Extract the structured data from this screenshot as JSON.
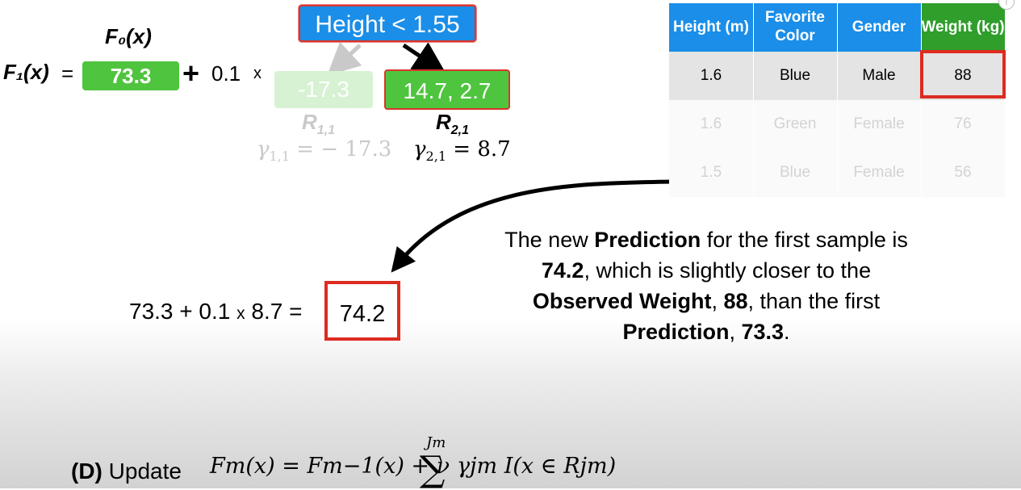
{
  "formula": {
    "f0_label": "F₀(x)",
    "f1_label": "F₁(x)",
    "equals": "=",
    "f0_value": "73.3",
    "plus": "+",
    "learning_rate": "0.1",
    "times": "x"
  },
  "tree": {
    "root": "Height < 1.55",
    "left_leaf": "-17.3",
    "right_leaf": "14.7, 2.7",
    "left_region": "R",
    "left_region_sub": "1,1",
    "right_region": "R",
    "right_region_sub": "2,1",
    "left_gamma": "γ",
    "left_gamma_sub": "1,1",
    "left_gamma_value": " = − 17.3",
    "right_gamma": "γ",
    "right_gamma_sub": "2,1",
    "right_gamma_value": " = 8.7"
  },
  "table": {
    "headers": [
      "Height (m)",
      "Favorite Color",
      "Gender",
      "Weight (kg)"
    ],
    "rows": [
      [
        "1.6",
        "Blue",
        "Male",
        "88"
      ],
      [
        "1.6",
        "Green",
        "Female",
        "76"
      ],
      [
        "1.5",
        "Blue",
        "Female",
        "56"
      ]
    ]
  },
  "calc": {
    "lhs_a": "73.3 + 0.1",
    "lhs_x": "x",
    "lhs_b": "8.7 =",
    "result": "74.2"
  },
  "explanation": {
    "p1": "The new ",
    "b1": "Prediction",
    "p2": " for the first sample is",
    "b2": "74.2",
    "p3": ", which is slightly closer to the",
    "b3": "Observed Weight",
    "p4": ", ",
    "b4": "88",
    "p5": ", than the first",
    "b5": "Prediction",
    "p6": ", ",
    "b6": "73.3",
    "p7": "."
  },
  "step": {
    "label": "(D)",
    "text": " Update",
    "formula": "Fm(x) = Fm−1(x) + ν",
    "sigma": "∑",
    "upper": "Jm",
    "tail": "γjm I(x ∈ Rjm)"
  },
  "info_icon": "i",
  "colors": {
    "blue": "#1a8ee8",
    "green": "#4fc43e",
    "dark_green": "#2f9e2b",
    "red": "#dd2b20"
  }
}
